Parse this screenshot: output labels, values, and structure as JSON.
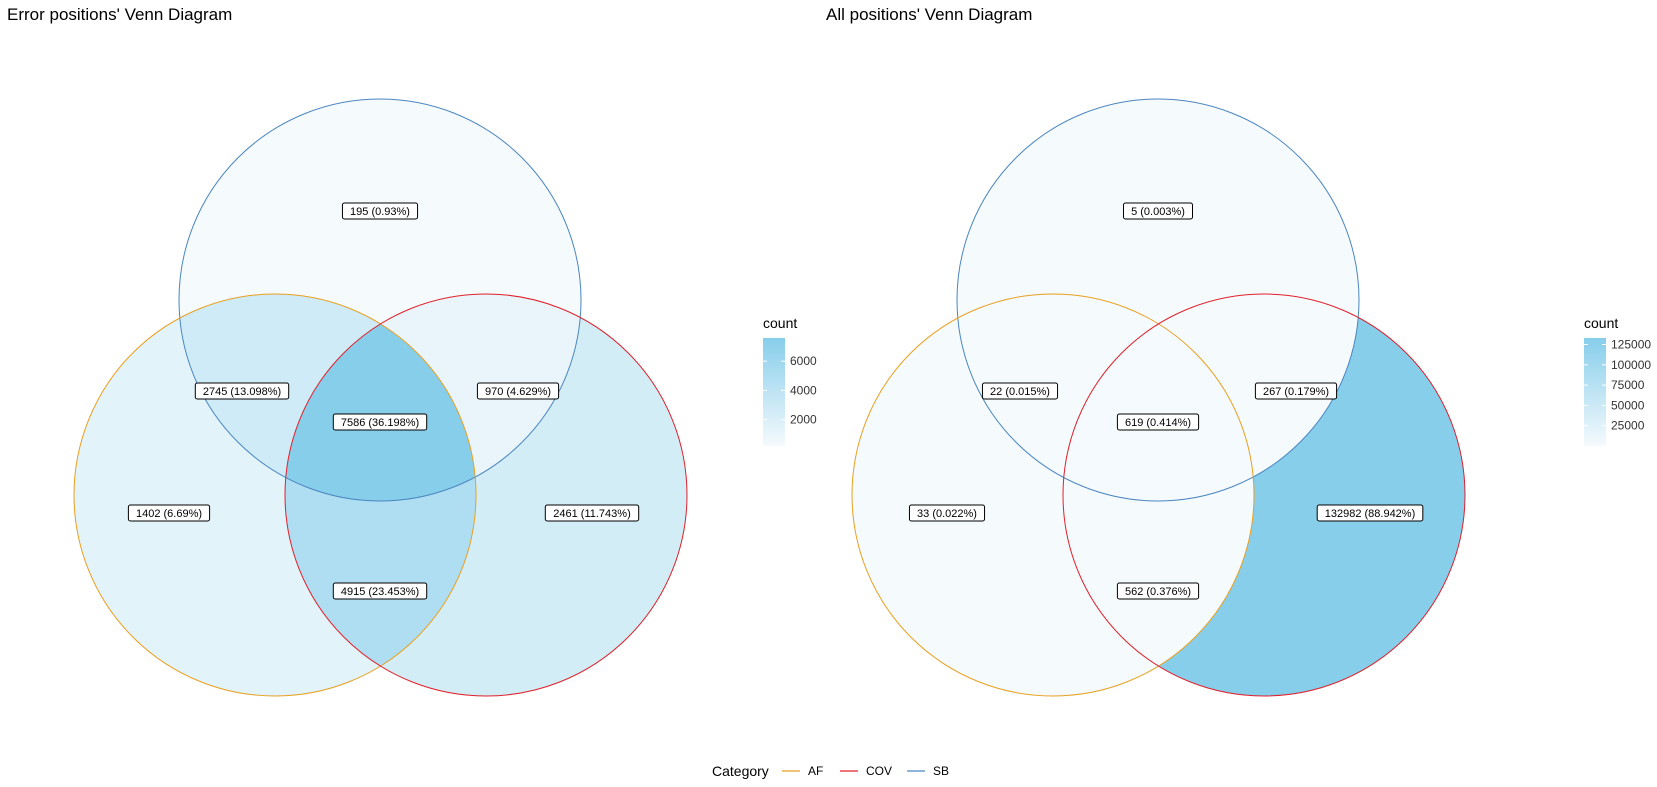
{
  "diagrams": [
    {
      "title": "Error positions' Venn Diagram",
      "legend_title": "count",
      "legend_ticks": [
        2000,
        4000,
        6000
      ],
      "legend_range": [
        195,
        7586
      ],
      "regions": [
        {
          "key": "SB",
          "label": "195 (0.93%)",
          "count": 195
        },
        {
          "key": "AF&SB",
          "label": "2745 (13.098%)",
          "count": 2745
        },
        {
          "key": "COV&SB",
          "label": "970 (4.629%)",
          "count": 970
        },
        {
          "key": "AF&COV&SB",
          "label": "7586 (36.198%)",
          "count": 7586
        },
        {
          "key": "AF",
          "label": "1402 (6.69%)",
          "count": 1402
        },
        {
          "key": "COV",
          "label": "2461 (11.743%)",
          "count": 2461
        },
        {
          "key": "AF&COV",
          "label": "4915 (23.453%)",
          "count": 4915
        }
      ]
    },
    {
      "title": "All positions' Venn Diagram",
      "legend_title": "count",
      "legend_ticks": [
        25000,
        50000,
        75000,
        100000,
        125000
      ],
      "legend_range": [
        5,
        132982
      ],
      "regions": [
        {
          "key": "SB",
          "label": "5 (0.003%)",
          "count": 5
        },
        {
          "key": "AF&SB",
          "label": "22 (0.015%)",
          "count": 22
        },
        {
          "key": "COV&SB",
          "label": "267 (0.179%)",
          "count": 267
        },
        {
          "key": "AF&COV&SB",
          "label": "619 (0.414%)",
          "count": 619
        },
        {
          "key": "AF",
          "label": "33 (0.022%)",
          "count": 33
        },
        {
          "key": "COV",
          "label": "132982 (88.942%)",
          "count": 132982
        },
        {
          "key": "AF&COV",
          "label": "562 (0.376%)",
          "count": 562
        }
      ]
    }
  ],
  "category_legend": {
    "title": "Category",
    "items": [
      {
        "name": "AF",
        "color": "#E8A020"
      },
      {
        "name": "COV",
        "color": "#E0202A"
      },
      {
        "name": "SB",
        "color": "#4A86C0"
      }
    ]
  },
  "fill_colors": {
    "low": "#F5FAFD",
    "high": "#87CEEB"
  }
}
